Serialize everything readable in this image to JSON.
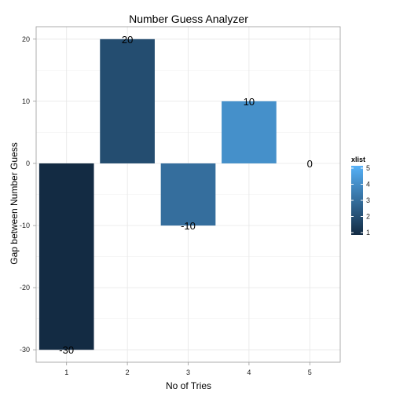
{
  "chart_data": {
    "type": "bar",
    "title": "Number Guess Analyzer",
    "xlabel": "No of Tries",
    "ylabel": "Gap between Number Guess",
    "categories": [
      "1",
      "2",
      "3",
      "4",
      "5"
    ],
    "values": [
      -30,
      20,
      -10,
      10,
      0
    ],
    "data_labels": [
      "-30",
      "20",
      "-10",
      "10",
      "0"
    ],
    "ylim": [
      -32,
      22
    ],
    "yticks": [
      20,
      10,
      0,
      -10,
      -20,
      -30
    ],
    "ytick_labels": [
      "20",
      "10",
      "0",
      "-10",
      "-20",
      "-30"
    ],
    "grid": true,
    "legend": {
      "title": "xlist",
      "placement": "right",
      "range": [
        1,
        5
      ],
      "ticks": [
        "5",
        "4",
        "3",
        "2",
        "1"
      ],
      "color_low": "#132B43",
      "color_high": "#56B1F7"
    }
  }
}
